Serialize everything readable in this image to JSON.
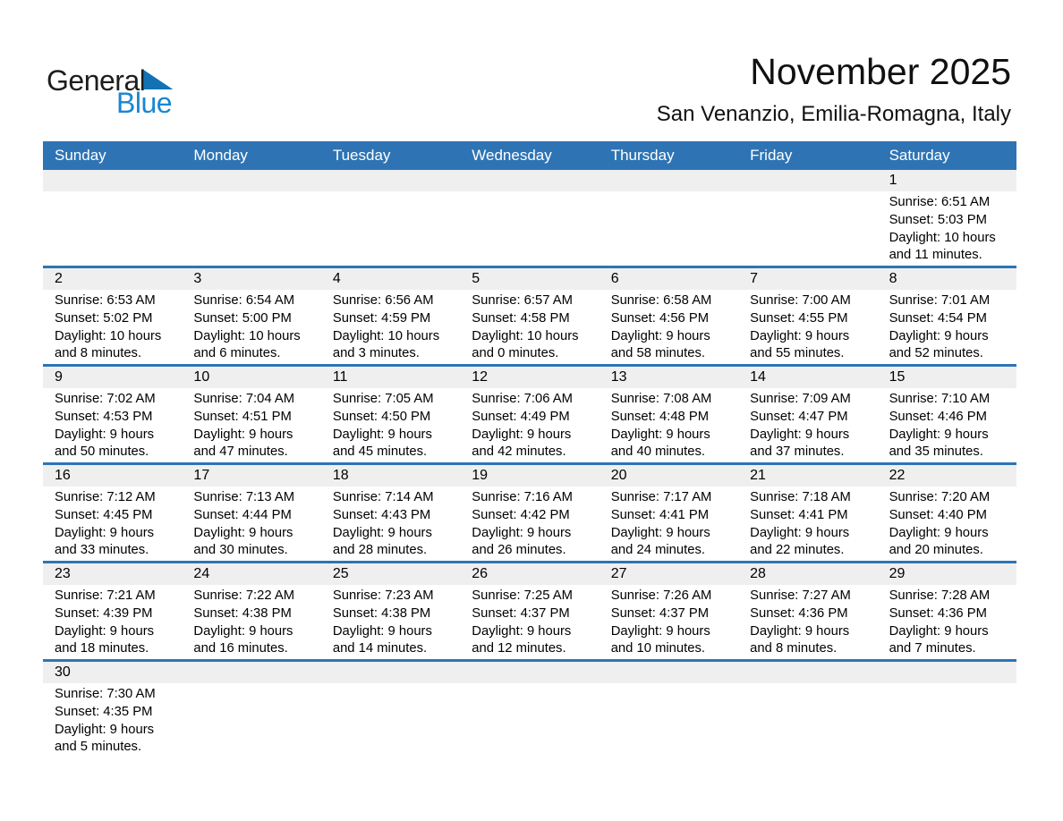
{
  "logo": {
    "general": "General",
    "blue": "Blue",
    "triangle_icon": "blue-flag-triangle"
  },
  "header": {
    "title": "November 2025",
    "subtitle": "San Venanzio, Emilia-Romagna, Italy"
  },
  "colors": {
    "header_blue": "#2E74B5",
    "separator_line_blue": "#2E74B5",
    "day_band_gray": "#EFEFEF",
    "logo_blue_text": "#1787D2",
    "logo_triangle_blue": "#1272B4",
    "weekday_text": "#FFFFFF",
    "body_text": "#000000"
  },
  "calendar": {
    "weekday_headers": [
      "Sunday",
      "Monday",
      "Tuesday",
      "Wednesday",
      "Thursday",
      "Friday",
      "Saturday"
    ],
    "weeks": [
      [
        null,
        null,
        null,
        null,
        null,
        null,
        {
          "day": "1",
          "lines": [
            "Sunrise: 6:51 AM",
            "Sunset: 5:03 PM",
            "Daylight: 10 hours",
            "and 11 minutes."
          ]
        }
      ],
      [
        {
          "day": "2",
          "lines": [
            "Sunrise: 6:53 AM",
            "Sunset: 5:02 PM",
            "Daylight: 10 hours",
            "and 8 minutes."
          ]
        },
        {
          "day": "3",
          "lines": [
            "Sunrise: 6:54 AM",
            "Sunset: 5:00 PM",
            "Daylight: 10 hours",
            "and 6 minutes."
          ]
        },
        {
          "day": "4",
          "lines": [
            "Sunrise: 6:56 AM",
            "Sunset: 4:59 PM",
            "Daylight: 10 hours",
            "and 3 minutes."
          ]
        },
        {
          "day": "5",
          "lines": [
            "Sunrise: 6:57 AM",
            "Sunset: 4:58 PM",
            "Daylight: 10 hours",
            "and 0 minutes."
          ]
        },
        {
          "day": "6",
          "lines": [
            "Sunrise: 6:58 AM",
            "Sunset: 4:56 PM",
            "Daylight: 9 hours",
            "and 58 minutes."
          ]
        },
        {
          "day": "7",
          "lines": [
            "Sunrise: 7:00 AM",
            "Sunset: 4:55 PM",
            "Daylight: 9 hours",
            "and 55 minutes."
          ]
        },
        {
          "day": "8",
          "lines": [
            "Sunrise: 7:01 AM",
            "Sunset: 4:54 PM",
            "Daylight: 9 hours",
            "and 52 minutes."
          ]
        }
      ],
      [
        {
          "day": "9",
          "lines": [
            "Sunrise: 7:02 AM",
            "Sunset: 4:53 PM",
            "Daylight: 9 hours",
            "and 50 minutes."
          ]
        },
        {
          "day": "10",
          "lines": [
            "Sunrise: 7:04 AM",
            "Sunset: 4:51 PM",
            "Daylight: 9 hours",
            "and 47 minutes."
          ]
        },
        {
          "day": "11",
          "lines": [
            "Sunrise: 7:05 AM",
            "Sunset: 4:50 PM",
            "Daylight: 9 hours",
            "and 45 minutes."
          ]
        },
        {
          "day": "12",
          "lines": [
            "Sunrise: 7:06 AM",
            "Sunset: 4:49 PM",
            "Daylight: 9 hours",
            "and 42 minutes."
          ]
        },
        {
          "day": "13",
          "lines": [
            "Sunrise: 7:08 AM",
            "Sunset: 4:48 PM",
            "Daylight: 9 hours",
            "and 40 minutes."
          ]
        },
        {
          "day": "14",
          "lines": [
            "Sunrise: 7:09 AM",
            "Sunset: 4:47 PM",
            "Daylight: 9 hours",
            "and 37 minutes."
          ]
        },
        {
          "day": "15",
          "lines": [
            "Sunrise: 7:10 AM",
            "Sunset: 4:46 PM",
            "Daylight: 9 hours",
            "and 35 minutes."
          ]
        }
      ],
      [
        {
          "day": "16",
          "lines": [
            "Sunrise: 7:12 AM",
            "Sunset: 4:45 PM",
            "Daylight: 9 hours",
            "and 33 minutes."
          ]
        },
        {
          "day": "17",
          "lines": [
            "Sunrise: 7:13 AM",
            "Sunset: 4:44 PM",
            "Daylight: 9 hours",
            "and 30 minutes."
          ]
        },
        {
          "day": "18",
          "lines": [
            "Sunrise: 7:14 AM",
            "Sunset: 4:43 PM",
            "Daylight: 9 hours",
            "and 28 minutes."
          ]
        },
        {
          "day": "19",
          "lines": [
            "Sunrise: 7:16 AM",
            "Sunset: 4:42 PM",
            "Daylight: 9 hours",
            "and 26 minutes."
          ]
        },
        {
          "day": "20",
          "lines": [
            "Sunrise: 7:17 AM",
            "Sunset: 4:41 PM",
            "Daylight: 9 hours",
            "and 24 minutes."
          ]
        },
        {
          "day": "21",
          "lines": [
            "Sunrise: 7:18 AM",
            "Sunset: 4:41 PM",
            "Daylight: 9 hours",
            "and 22 minutes."
          ]
        },
        {
          "day": "22",
          "lines": [
            "Sunrise: 7:20 AM",
            "Sunset: 4:40 PM",
            "Daylight: 9 hours",
            "and 20 minutes."
          ]
        }
      ],
      [
        {
          "day": "23",
          "lines": [
            "Sunrise: 7:21 AM",
            "Sunset: 4:39 PM",
            "Daylight: 9 hours",
            "and 18 minutes."
          ]
        },
        {
          "day": "24",
          "lines": [
            "Sunrise: 7:22 AM",
            "Sunset: 4:38 PM",
            "Daylight: 9 hours",
            "and 16 minutes."
          ]
        },
        {
          "day": "25",
          "lines": [
            "Sunrise: 7:23 AM",
            "Sunset: 4:38 PM",
            "Daylight: 9 hours",
            "and 14 minutes."
          ]
        },
        {
          "day": "26",
          "lines": [
            "Sunrise: 7:25 AM",
            "Sunset: 4:37 PM",
            "Daylight: 9 hours",
            "and 12 minutes."
          ]
        },
        {
          "day": "27",
          "lines": [
            "Sunrise: 7:26 AM",
            "Sunset: 4:37 PM",
            "Daylight: 9 hours",
            "and 10 minutes."
          ]
        },
        {
          "day": "28",
          "lines": [
            "Sunrise: 7:27 AM",
            "Sunset: 4:36 PM",
            "Daylight: 9 hours",
            "and 8 minutes."
          ]
        },
        {
          "day": "29",
          "lines": [
            "Sunrise: 7:28 AM",
            "Sunset: 4:36 PM",
            "Daylight: 9 hours",
            "and 7 minutes."
          ]
        }
      ],
      [
        {
          "day": "30",
          "lines": [
            "Sunrise: 7:30 AM",
            "Sunset: 4:35 PM",
            "Daylight: 9 hours",
            "and 5 minutes."
          ]
        },
        null,
        null,
        null,
        null,
        null,
        null
      ]
    ]
  }
}
